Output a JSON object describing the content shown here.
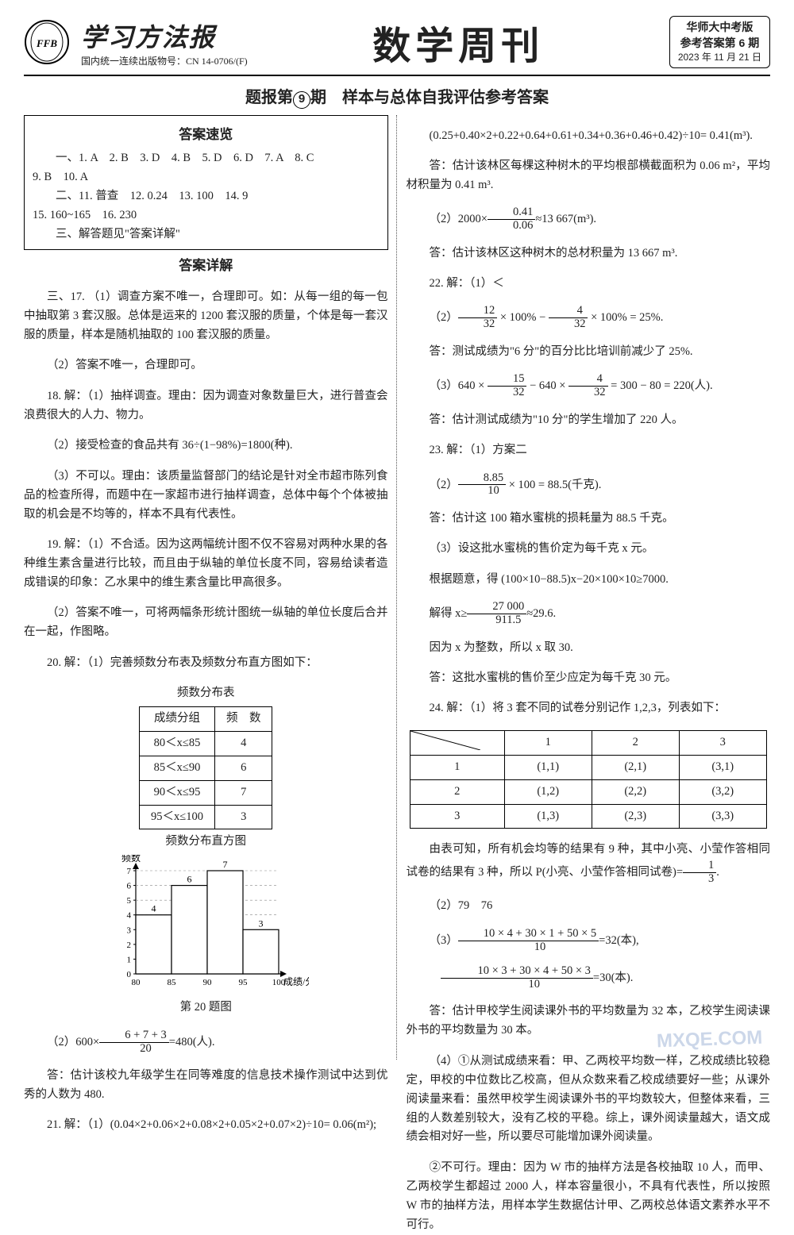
{
  "masthead": {
    "paper_name": "学习方法报",
    "issn": "国内统一连续出版物号：CN 14-0706/(F)",
    "title": "数学周刊",
    "edition_line1": "华师大中考版",
    "edition_line2": "参考答案第 6 期",
    "date": "2023 年 11 月 21 日"
  },
  "subtitle_prefix": "题报第",
  "subtitle_num": "9",
  "subtitle_suffix": "期　样本与总体自我评估参考答案",
  "overview": {
    "heading": "答案速览",
    "line1": "一、1. A　2. B　3. D　4. B　5. D　6. D　7. A　8. C",
    "line1b": "9. B　10. A",
    "line2": "二、11. 普查　12. 0.24　13. 100　14. 9",
    "line2b": "15. 160~165　16. 230",
    "line3": "三、解答题见\"答案详解\""
  },
  "detail_heading": "答案详解",
  "left": {
    "p17_1": "三、17. （1）调查方案不唯一，合理即可。如：从每一组的每一包中抽取第 3 套汉服。总体是运来的 1200 套汉服的质量，个体是每一套汉服的质量，样本是随机抽取的 100 套汉服的质量。",
    "p17_2": "（2）答案不唯一，合理即可。",
    "p18_1": "18. 解：（1）抽样调查。理由：因为调查对象数量巨大，进行普查会浪费很大的人力、物力。",
    "p18_2": "（2）接受检查的食品共有 36÷(1−98%)=1800(种).",
    "p18_3": "（3）不可以。理由：该质量监督部门的结论是针对全市超市陈列食品的检查所得，而题中在一家超市进行抽样调查，总体中每个个体被抽取的机会是不均等的，样本不具有代表性。",
    "p19_1": "19. 解：（1）不合适。因为这两幅统计图不仅不容易对两种水果的各种维生素含量进行比较，而且由于纵轴的单位长度不同，容易给读者造成错误的印象：乙水果中的维生素含量比甲高很多。",
    "p19_2": "（2）答案不唯一，可将两幅条形统计图统一纵轴的单位长度后合并在一起，作图略。",
    "p20_1": "20. 解：（1）完善频数分布表及频数分布直方图如下：",
    "freq_table": {
      "caption": "频数分布表",
      "headers": [
        "成绩分组",
        "频　数"
      ],
      "rows": [
        [
          "80＜x≤85",
          "4"
        ],
        [
          "85＜x≤90",
          "6"
        ],
        [
          "90＜x≤95",
          "7"
        ],
        [
          "95＜x≤100",
          "3"
        ]
      ]
    },
    "hist": {
      "caption": "频数分布直方图",
      "fig_label": "第 20 题图",
      "xlabel": "成绩/分",
      "ylabel": "频数",
      "xticks": [
        "80",
        "85",
        "90",
        "95",
        "100"
      ],
      "yticks": [
        "0",
        "1",
        "2",
        "3",
        "4",
        "5",
        "6",
        "7"
      ],
      "values": [
        4,
        6,
        7,
        3
      ],
      "bar_color": "#ffffff",
      "bar_border": "#000000",
      "axis_color": "#000000"
    },
    "p20_2a": "（2）600×",
    "p20_2_num": "6 + 7 + 3",
    "p20_2_den": "20",
    "p20_2b": "=480(人).",
    "p20_ans": "答：估计该校九年级学生在同等难度的信息技术操作测试中达到优秀的人数为 480.",
    "p21_1": "21. 解：（1）(0.04×2+0.06×2+0.08×2+0.05×2+0.07×2)÷10= 0.06(m²);"
  },
  "right": {
    "p21_1b": "(0.25+0.40×2+0.22+0.64+0.61+0.34+0.36+0.46+0.42)÷10= 0.41(m³).",
    "p21_ans1": "答：估计该林区每棵这种树木的平均根部横截面积为 0.06 m²，平均材积量为 0.41 m³.",
    "p21_2a": "（2）2000×",
    "p21_2_num": "0.41",
    "p21_2_den": "0.06",
    "p21_2b": "≈13 667(m³).",
    "p21_ans2": "答：估计该林区这种树木的总材积量为 13 667 m³.",
    "p22_1": "22. 解：（1）＜",
    "p22_2a": "（2）",
    "p22_2_f1n": "12",
    "p22_2_f1d": "32",
    "p22_2_mid": " × 100% − ",
    "p22_2_f2n": "4",
    "p22_2_f2d": "32",
    "p22_2b": " × 100% = 25%.",
    "p22_ans2": "答：测试成绩为\"6 分\"的百分比比培训前减少了 25%.",
    "p22_3a": "（3）640 × ",
    "p22_3_f1n": "15",
    "p22_3_f1d": "32",
    "p22_3_mid": " − 640 × ",
    "p22_3_f2n": "4",
    "p22_3_f2d": "32",
    "p22_3b": " = 300 − 80 = 220(人).",
    "p22_ans3": "答：估计测试成绩为\"10 分\"的学生增加了 220 人。",
    "p23_1": "23. 解：（1）方案二",
    "p23_2a": "（2）",
    "p23_2_num": "8.85",
    "p23_2_den": "10",
    "p23_2b": " × 100 = 88.5(千克).",
    "p23_ans2": "答：估计这 100 箱水蜜桃的损耗量为 88.5 千克。",
    "p23_3a": "（3）设这批水蜜桃的售价定为每千克 x 元。",
    "p23_3b": "根据题意，得 (100×10−88.5)x−20×100×10≥7000.",
    "p23_3c_a": "解得 x≥",
    "p23_3c_num": "27 000",
    "p23_3c_den": "911.5",
    "p23_3c_b": "≈29.6.",
    "p23_3d": "因为 x 为整数，所以 x 取 30.",
    "p23_ans3": "答：这批水蜜桃的售价至少应定为每千克 30 元。",
    "p24_1": "24. 解：（1）将 3 套不同的试卷分别记作 1,2,3，列表如下：",
    "pair_table": {
      "headers": [
        "",
        "1",
        "2",
        "3"
      ],
      "rows": [
        [
          "1",
          "(1,1)",
          "(2,1)",
          "(3,1)"
        ],
        [
          "2",
          "(1,2)",
          "(2,2)",
          "(3,2)"
        ],
        [
          "3",
          "(1,3)",
          "(2,3)",
          "(3,3)"
        ]
      ],
      "col_widths": [
        "90px",
        "120px",
        "120px",
        "120px"
      ]
    },
    "p24_1b_a": "由表可知，所有机会均等的结果有 9 种，其中小亮、小莹作答相同试卷的结果有 3 种，所以 P(小亮、小莹作答相同试卷)=",
    "p24_1b_num": "1",
    "p24_1b_den": "3",
    "p24_1b_b": ".",
    "p24_2": "（2）79　76",
    "p24_3a": "（3）",
    "p24_3_f1n": "10 × 4 + 30 × 1 + 50 × 5",
    "p24_3_f1d": "10",
    "p24_3_mid1": "=32(本),",
    "p24_3_f2n": "10 × 3 + 30 × 4 + 50 × 3",
    "p24_3_f2d": "10",
    "p24_3_mid2": "=30(本).",
    "p24_ans3": "答：估计甲校学生阅读课外书的平均数量为 32 本，乙校学生阅读课外书的平均数量为 30 本。",
    "p24_4a": "（4）①从测试成绩来看：甲、乙两校平均数一样，乙校成绩比较稳定，甲校的中位数比乙校高，但从众数来看乙校成绩要好一些；从课外阅读量来看：虽然甲校学生阅读课外书的平均数较大，但整体来看，三组的人数差别较大，没有乙校的平稳。综上，课外阅读量越大，语文成绩会相对好一些，所以要尽可能增加课外阅读量。",
    "p24_4b": "②不可行。理由：因为 W 市的抽样方法是各校抽取 10 人，而甲、乙两校学生都超过 2000 人，样本容量很小，不具有代表性，所以按照 W 市的抽样方法，用样本学生数据估计甲、乙两校总体语文素养水平不可行。"
  },
  "watermark": "MXQE.COM"
}
